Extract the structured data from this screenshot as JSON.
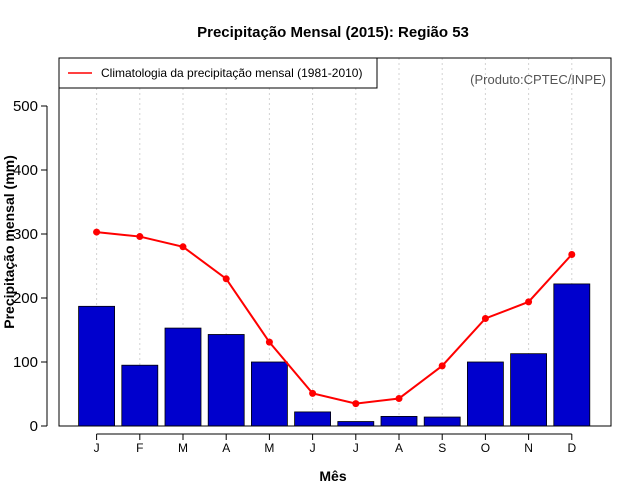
{
  "chart_data": {
    "type": "bar",
    "title": "Precipitação Mensal (2015): Região 53",
    "xlabel": "Mês",
    "ylabel": "Precipitação mensal (mm)",
    "ylim": [
      0,
      575
    ],
    "yticks": [
      0,
      100,
      200,
      300,
      400,
      500
    ],
    "categories": [
      "J",
      "F",
      "M",
      "A",
      "M",
      "J",
      "J",
      "A",
      "S",
      "O",
      "N",
      "D"
    ],
    "series": [
      {
        "name": "Precipitação mensal 2015",
        "type": "bar",
        "color": "#0000cd",
        "values": [
          187,
          95,
          153,
          143,
          100,
          22,
          7,
          15,
          14,
          100,
          113,
          222
        ]
      },
      {
        "name": "Climatologia da precipitação mensal (1981-2010)",
        "type": "line",
        "color": "#ff0000",
        "values": [
          303,
          296,
          280,
          230,
          131,
          51,
          35,
          43,
          94,
          168,
          194,
          268
        ]
      }
    ],
    "legend": {
      "position": "top-left",
      "entries": [
        "Climatologia da precipitação mensal (1981-2010)"
      ]
    },
    "grid": "vertical-dotted",
    "credit": "(Produto:CPTEC/INPE)"
  }
}
